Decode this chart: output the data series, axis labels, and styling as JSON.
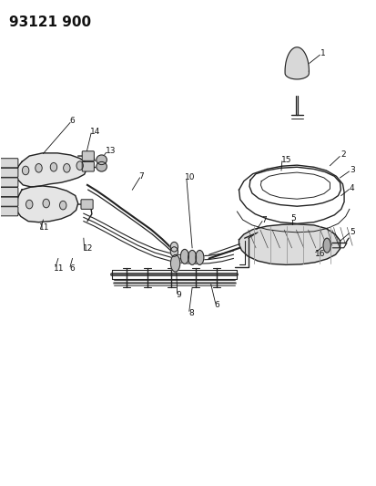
{
  "title": "93121 900",
  "bg_color": "#ffffff",
  "line_color": "#222222",
  "label_color": "#111111",
  "fig_width": 4.14,
  "fig_height": 5.33,
  "dpi": 100,
  "label_fs": 6.5,
  "title_fontsize": 11
}
